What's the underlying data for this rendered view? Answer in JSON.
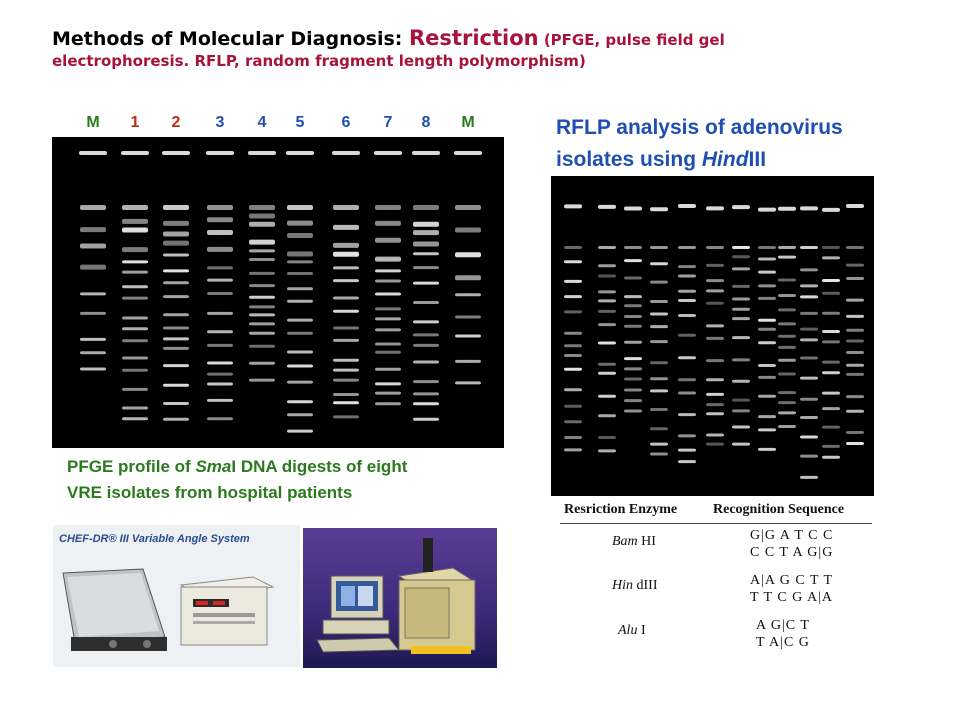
{
  "title": {
    "prefix": "Methods of Molecular Diagnosis: ",
    "method": "Restriction",
    "detail_line1": " (PFGE, pulse field gel",
    "detail_line2": "electrophoresis. RFLP, random fragment length polymorphism)"
  },
  "pfge": {
    "lanes": [
      {
        "label": "M",
        "color": "#2b7a1e"
      },
      {
        "label": "1",
        "color": "#c22a14"
      },
      {
        "label": "2",
        "color": "#c22a14"
      },
      {
        "label": "3",
        "color": "#1f4fb0"
      },
      {
        "label": "4",
        "color": "#1f4fb0"
      },
      {
        "label": "5",
        "color": "#1f4fb0"
      },
      {
        "label": "6",
        "color": "#1f4fb0"
      },
      {
        "label": "7",
        "color": "#1f4fb0"
      },
      {
        "label": "8",
        "color": "#1f4fb0"
      },
      {
        "label": "M",
        "color": "#2b7a1e"
      }
    ],
    "caption_line1_a": "PFGE profile of ",
    "caption_enzyme": "Sma",
    "caption_line1_b": "I DNA digests of eight",
    "caption_line2": "VRE isolates from hospital patients"
  },
  "rflp": {
    "caption_line1": "RFLP analysis of adenovirus",
    "caption_line2_a": "isolates using ",
    "caption_enzyme": "Hind",
    "caption_line2_b": "III"
  },
  "equipment": {
    "system_name": "CHEF-DR® III Variable Angle System"
  },
  "enzymes": {
    "header_enzyme": "Resriction Enzyme",
    "header_sequence": "Recognition Sequence",
    "rows": [
      {
        "name_italic": "Bam",
        "name_roman": " HI",
        "top": "G|G A T C C",
        "bottom": "C C T A G|G"
      },
      {
        "name_italic": "Hin",
        "name_roman": " dIII",
        "top": "A|A G C T T",
        "bottom": "T T C G A|A"
      },
      {
        "name_italic": "Alu",
        "name_roman": " I",
        "top": "A G|C T",
        "bottom": "T A|C G"
      }
    ]
  }
}
